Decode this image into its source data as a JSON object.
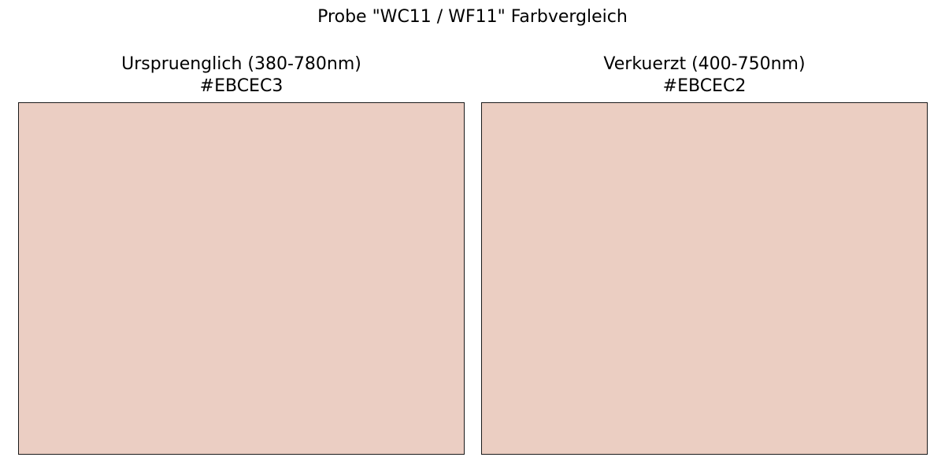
{
  "chart_data": {
    "type": "color-swatch-comparison",
    "title": "Probe \"WC11 / WF11\" Farbvergleich",
    "panels": [
      {
        "title": "Urspruenglich (380-780nm)",
        "hex_label": "#EBCEC3",
        "color": "#EBCEC3"
      },
      {
        "title": "Verkuerzt (400-750nm)",
        "hex_label": "#EBCEC2",
        "color": "#EBCEC2"
      }
    ]
  }
}
